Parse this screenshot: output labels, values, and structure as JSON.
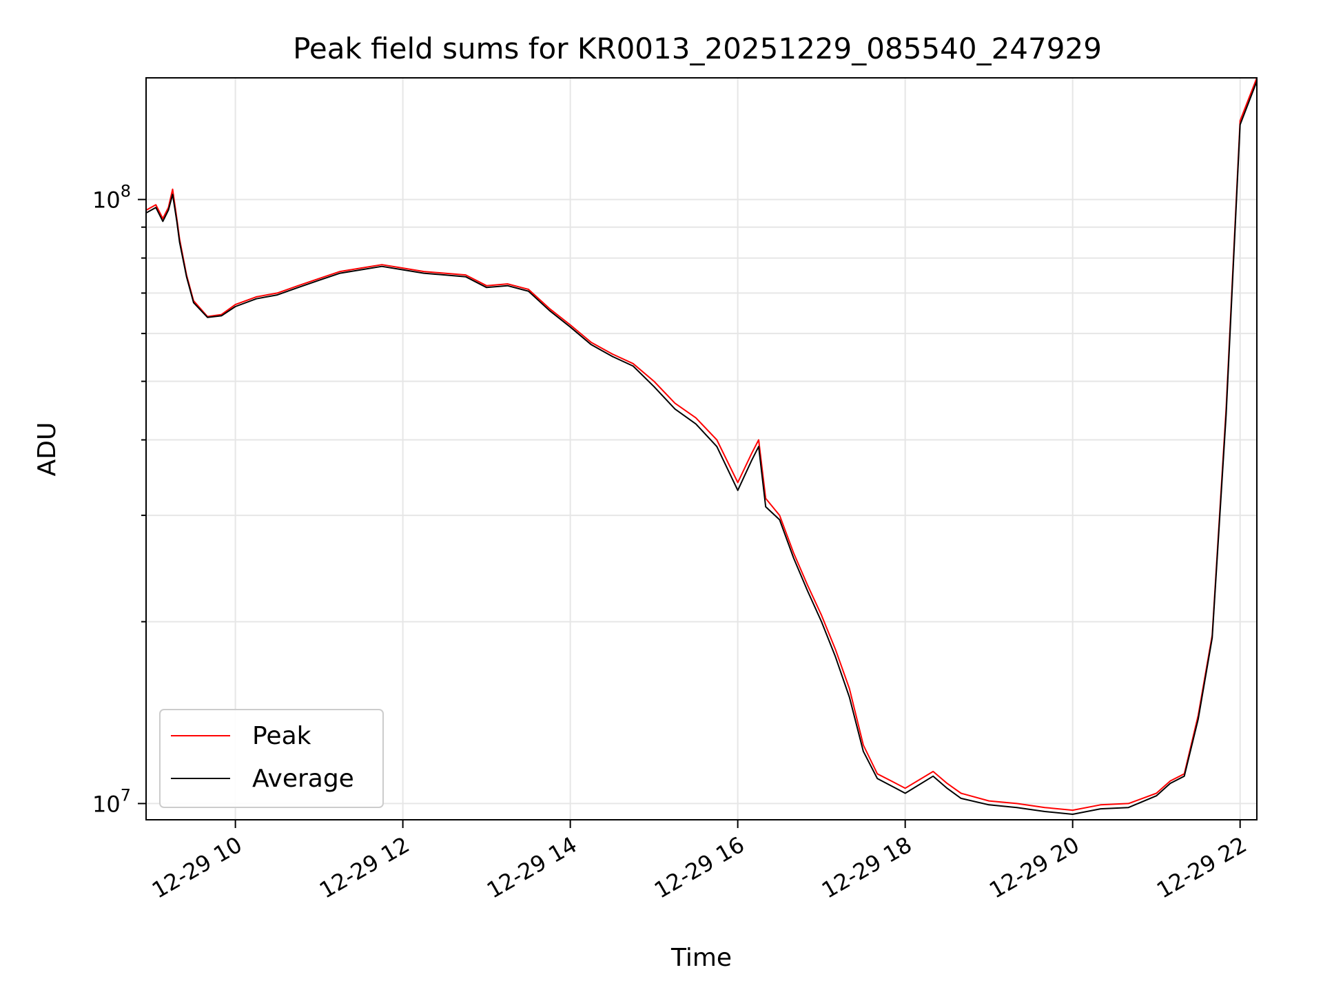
{
  "chart_data": {
    "type": "line",
    "title": "Peak field sums for KR0013_20251229_085540_247929",
    "xlabel": "Time",
    "ylabel": "ADU",
    "x_date": "12-29",
    "xlim": [
      "12-29 08:56",
      "12-29 22:12"
    ],
    "ylim": [
      9400000,
      159000000
    ],
    "yscale": "log",
    "grid": true,
    "legend_position": "lower-left",
    "x_ticks": [
      "12-29 10",
      "12-29 12",
      "12-29 14",
      "12-29 16",
      "12-29 18",
      "12-29 20",
      "12-29 22"
    ],
    "y_ticks": [
      {
        "base": "10",
        "exp": "7",
        "value": 10000000
      },
      {
        "base": "10",
        "exp": "8",
        "value": 100000000
      }
    ],
    "series": [
      {
        "name": "Peak",
        "color": "#ff0000",
        "x": [
          "08:56",
          "09:03",
          "09:08",
          "09:12",
          "09:15",
          "09:18",
          "09:20",
          "09:25",
          "09:30",
          "09:40",
          "09:50",
          "10:00",
          "10:15",
          "10:30",
          "10:45",
          "11:00",
          "11:15",
          "11:30",
          "11:45",
          "12:00",
          "12:15",
          "12:30",
          "12:45",
          "13:00",
          "13:15",
          "13:30",
          "13:45",
          "14:00",
          "14:15",
          "14:30",
          "14:45",
          "15:00",
          "15:15",
          "15:30",
          "15:45",
          "16:00",
          "16:10",
          "16:15",
          "16:20",
          "16:30",
          "16:40",
          "16:50",
          "17:00",
          "17:10",
          "17:20",
          "17:30",
          "17:40",
          "17:50",
          "18:00",
          "18:20",
          "18:30",
          "18:40",
          "19:00",
          "19:20",
          "19:40",
          "20:00",
          "20:20",
          "20:40",
          "21:00",
          "21:10",
          "21:20",
          "21:30",
          "21:40",
          "21:50",
          "22:00",
          "22:12"
        ],
        "values": [
          96000000,
          98000000,
          93000000,
          97000000,
          104000000,
          93000000,
          86000000,
          75000000,
          68000000,
          64000000,
          64500000,
          67000000,
          69000000,
          70000000,
          72000000,
          74000000,
          76000000,
          77000000,
          78000000,
          77000000,
          76000000,
          75500000,
          75000000,
          72000000,
          72500000,
          71000000,
          66000000,
          62000000,
          58000000,
          55500000,
          53500000,
          50000000,
          46000000,
          43500000,
          40000000,
          34000000,
          38000000,
          40000000,
          32000000,
          30000000,
          26000000,
          23000000,
          20500000,
          18000000,
          15500000,
          12500000,
          11200000,
          10900000,
          10600000,
          11300000,
          10800000,
          10400000,
          10100000,
          10000000,
          9850000,
          9750000,
          9950000,
          10000000,
          10400000,
          10900000,
          11200000,
          14000000,
          19000000,
          45000000,
          135000000,
          159000000
        ]
      },
      {
        "name": "Average",
        "color": "#000000",
        "x": [
          "08:56",
          "09:03",
          "09:08",
          "09:12",
          "09:15",
          "09:18",
          "09:20",
          "09:25",
          "09:30",
          "09:40",
          "09:50",
          "10:00",
          "10:15",
          "10:30",
          "10:45",
          "11:00",
          "11:15",
          "11:30",
          "11:45",
          "12:00",
          "12:15",
          "12:30",
          "12:45",
          "13:00",
          "13:15",
          "13:30",
          "13:45",
          "14:00",
          "14:15",
          "14:30",
          "14:45",
          "15:00",
          "15:15",
          "15:30",
          "15:45",
          "16:00",
          "16:10",
          "16:15",
          "16:20",
          "16:30",
          "16:40",
          "16:50",
          "17:00",
          "17:10",
          "17:20",
          "17:30",
          "17:40",
          "17:50",
          "18:00",
          "18:20",
          "18:30",
          "18:40",
          "19:00",
          "19:20",
          "19:40",
          "20:00",
          "20:20",
          "20:40",
          "21:00",
          "21:10",
          "21:20",
          "21:30",
          "21:40",
          "21:50",
          "22:00",
          "22:12"
        ],
        "values": [
          95000000,
          97000000,
          92000000,
          96000000,
          102000000,
          92000000,
          85000000,
          74500000,
          67500000,
          63800000,
          64200000,
          66500000,
          68500000,
          69500000,
          71500000,
          73500000,
          75500000,
          76500000,
          77500000,
          76500000,
          75500000,
          75000000,
          74500000,
          71500000,
          72000000,
          70500000,
          65500000,
          61500000,
          57500000,
          55000000,
          53000000,
          49000000,
          45000000,
          42500000,
          39000000,
          33000000,
          37000000,
          39000000,
          31000000,
          29500000,
          25500000,
          22500000,
          20000000,
          17500000,
          15000000,
          12200000,
          11000000,
          10700000,
          10400000,
          11100000,
          10600000,
          10200000,
          9950000,
          9850000,
          9700000,
          9600000,
          9800000,
          9850000,
          10300000,
          10800000,
          11100000,
          13800000,
          18800000,
          44000000,
          133000000,
          157000000
        ]
      }
    ]
  }
}
